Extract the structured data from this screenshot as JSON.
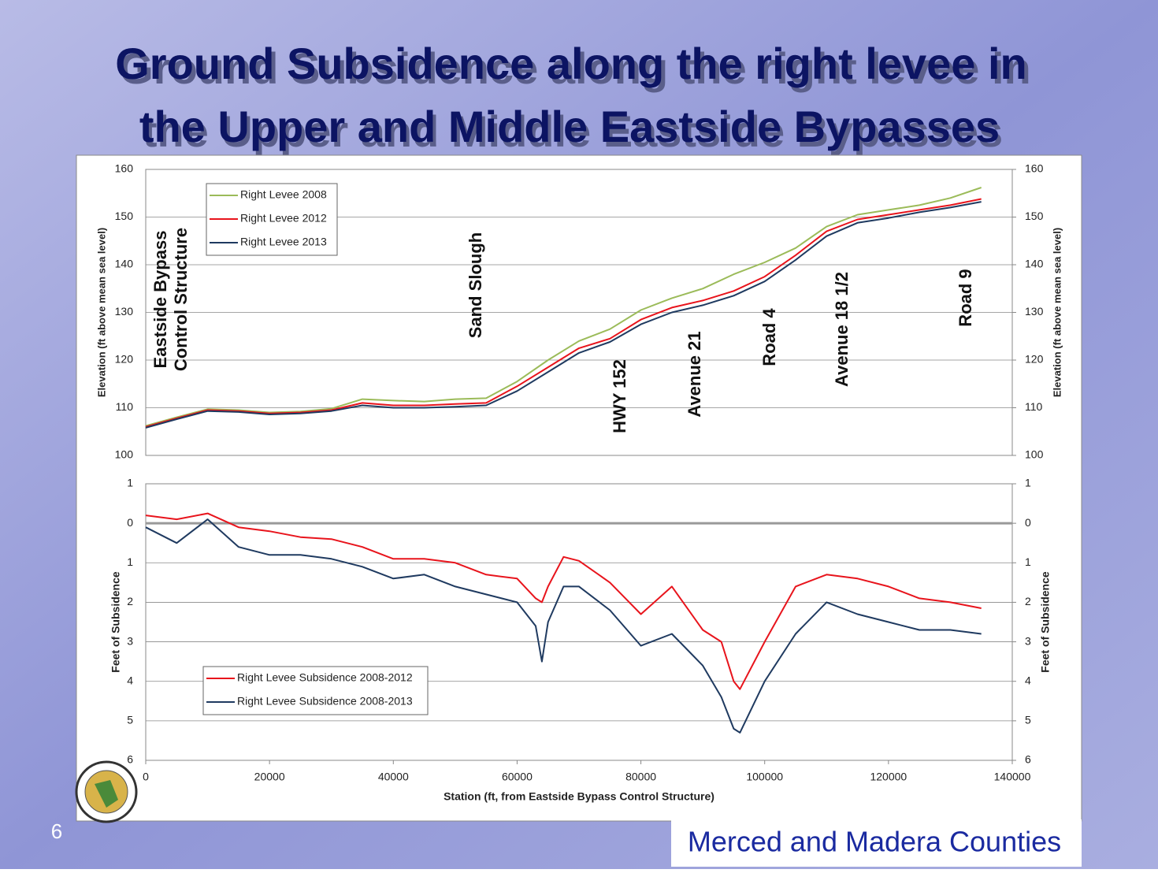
{
  "slide": {
    "title": [
      "Ground Subsidence along the right levee in",
      "the Upper and Middle Eastside Bypasses"
    ],
    "page_number": "6",
    "footer": "Merced and Madera Counties"
  },
  "chart_data": [
    {
      "type": "line",
      "ylabel": "Elevation (ft above mean sea level)",
      "y2label": "Elevation (ft above mean sea level)",
      "xlim": [
        0,
        140000
      ],
      "ylim": [
        100,
        160
      ],
      "yticks": [
        100,
        110,
        120,
        130,
        140,
        150,
        160
      ],
      "y2lim": [
        100,
        160
      ],
      "y2ticks": [
        100,
        110,
        120,
        130,
        140,
        150,
        160
      ],
      "grid": true,
      "x": [
        0,
        5000,
        10000,
        15000,
        20000,
        25000,
        30000,
        35000,
        40000,
        45000,
        50000,
        55000,
        60000,
        65000,
        70000,
        75000,
        80000,
        85000,
        90000,
        95000,
        100000,
        105000,
        110000,
        115000,
        120000,
        125000,
        130000,
        135000
      ],
      "series": [
        {
          "name": "Right Levee 2008",
          "color": "#9bbb59",
          "values": [
            106.2,
            108,
            109.7,
            109.5,
            109,
            109.2,
            109.8,
            111.8,
            111.5,
            111.3,
            111.8,
            112,
            115.5,
            120,
            124,
            126.5,
            130.5,
            133,
            135,
            138,
            140.5,
            143.5,
            148,
            150.5,
            151.5,
            152.5,
            154,
            156.2
          ]
        },
        {
          "name": "Right Levee 2012",
          "color": "#e8141c",
          "values": [
            106,
            107.8,
            109.5,
            109.3,
            108.8,
            109,
            109.5,
            111,
            110.5,
            110.5,
            110.8,
            111,
            114.5,
            118.5,
            122.5,
            124.5,
            128.5,
            131,
            132.5,
            134.5,
            137.5,
            142,
            147,
            149.5,
            150.5,
            151.5,
            152.5,
            153.8
          ]
        },
        {
          "name": "Right Levee 2013",
          "color": "#1f3a60",
          "values": [
            105.8,
            107.6,
            109.3,
            109.1,
            108.6,
            108.8,
            109.3,
            110.5,
            110,
            110,
            110.2,
            110.5,
            113.5,
            117.5,
            121.5,
            123.8,
            127.5,
            130,
            131.5,
            133.5,
            136.5,
            141,
            146,
            148.8,
            149.8,
            151,
            152,
            153.2
          ]
        }
      ],
      "annotations": [
        [
          "Eastside Bypass",
          "Control Structure"
        ],
        [
          "Sand Slough"
        ],
        [
          "HWY 152"
        ],
        [
          "Avenue  21"
        ],
        [
          "Road 4"
        ],
        [
          "Avenue 18 1/2"
        ],
        [
          "Road 9"
        ]
      ]
    },
    {
      "type": "line",
      "xlabel": "Station (ft, from Eastside Bypass Control Structure)",
      "ylabel": "Feet of Subsidence",
      "y2label": "Feet of Subsidence",
      "xlim": [
        0,
        140000
      ],
      "xticks": [
        0,
        20000,
        40000,
        60000,
        80000,
        100000,
        120000,
        140000
      ],
      "ylim": [
        -1,
        6
      ],
      "y_inverted": true,
      "yticks": [
        {
          "value": -1,
          "label": "1"
        },
        0,
        1,
        2,
        3,
        4,
        5,
        6
      ],
      "y2lim": [
        -1,
        6
      ],
      "y2ticks": [
        {
          "value": -1,
          "label": "1"
        },
        0,
        1,
        2,
        3,
        4,
        5,
        6
      ],
      "grid": true,
      "x": [
        0,
        5000,
        10000,
        15000,
        20000,
        25000,
        30000,
        35000,
        40000,
        45000,
        50000,
        55000,
        60000,
        63000,
        64000,
        65000,
        67500,
        70000,
        75000,
        80000,
        85000,
        90000,
        93000,
        95000,
        96000,
        100000,
        105000,
        110000,
        115000,
        120000,
        125000,
        130000,
        135000
      ],
      "series": [
        {
          "name": "Right Levee Subsidence 2008-2012",
          "color": "#e8141c",
          "values": [
            -0.2,
            -0.1,
            -0.25,
            0.1,
            0.2,
            0.35,
            0.4,
            0.6,
            0.9,
            0.9,
            1.0,
            1.3,
            1.4,
            1.9,
            2.0,
            1.6,
            0.85,
            0.95,
            1.5,
            2.3,
            1.6,
            2.7,
            3.0,
            4.0,
            4.2,
            3.0,
            1.6,
            1.3,
            1.4,
            1.6,
            1.9,
            2.0,
            2.15
          ]
        },
        {
          "name": "Right Levee Subsidence 2008-2013",
          "color": "#1f3a60",
          "values": [
            0.1,
            0.5,
            -0.1,
            0.6,
            0.8,
            0.8,
            0.9,
            1.1,
            1.4,
            1.3,
            1.6,
            1.8,
            2.0,
            2.6,
            3.5,
            2.5,
            1.6,
            1.6,
            2.2,
            3.1,
            2.8,
            3.6,
            4.4,
            5.2,
            5.3,
            4.0,
            2.8,
            2.0,
            2.3,
            2.5,
            2.7,
            2.7,
            2.8
          ]
        }
      ]
    }
  ]
}
